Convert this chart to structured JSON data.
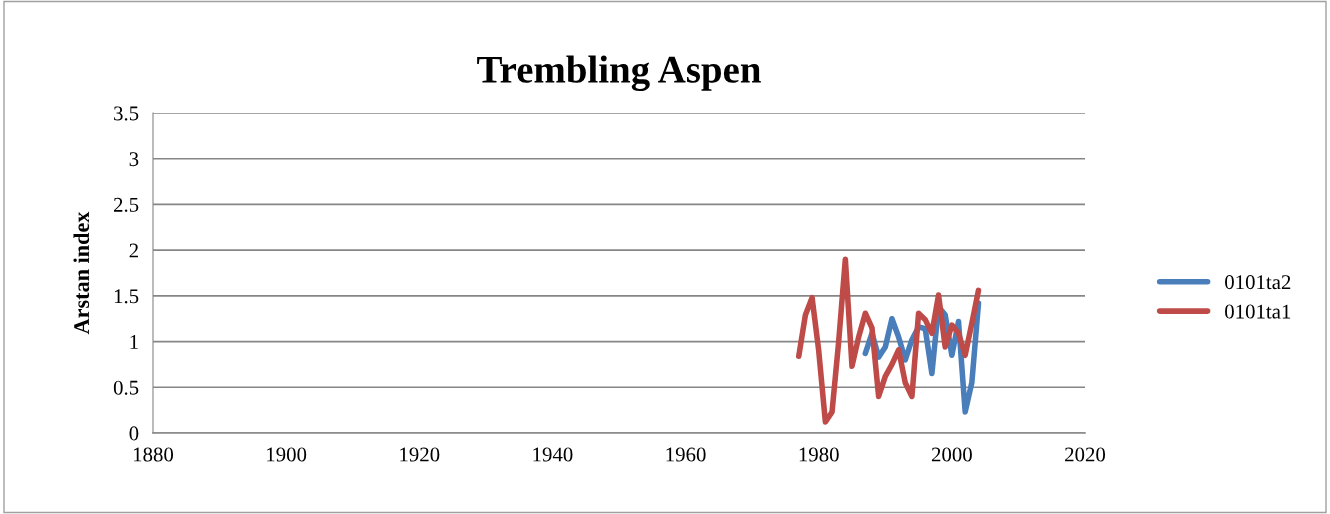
{
  "chart_data": {
    "type": "line",
    "title": "Trembling Aspen",
    "ylabel": "Arstan index",
    "xlim": [
      1880,
      2020
    ],
    "xticks": [
      1880,
      1900,
      1920,
      1940,
      1960,
      1980,
      2000,
      2020
    ],
    "ylim": [
      0,
      3.5
    ],
    "yticks": [
      0,
      0.5,
      1,
      1.5,
      2,
      2.5,
      3,
      3.5
    ],
    "grid": "y",
    "legend": "right",
    "marker": "none",
    "line_style": "solid",
    "series": [
      {
        "name": "0101ta2",
        "color": "#4a7ebb",
        "x": [
          1987,
          1988,
          1989,
          1990,
          1991,
          1992,
          1993,
          1994,
          1995,
          1996,
          1997,
          1998,
          1999,
          2000,
          2001,
          2002,
          2003,
          2004
        ],
        "values": [
          0.87,
          1.09,
          0.83,
          0.94,
          1.25,
          1.05,
          0.8,
          1.02,
          1.16,
          1.14,
          0.65,
          1.38,
          1.29,
          0.85,
          1.22,
          0.23,
          0.55,
          1.42
        ]
      },
      {
        "name": "0101ta1",
        "color": "#be4b48",
        "x": [
          1977,
          1978,
          1979,
          1980,
          1981,
          1982,
          1983,
          1984,
          1985,
          1986,
          1987,
          1988,
          1989,
          1990,
          1991,
          1992,
          1993,
          1994,
          1995,
          1996,
          1997,
          1998,
          1999,
          2000,
          2001,
          2002,
          2003,
          2004
        ],
        "values": [
          0.84,
          1.29,
          1.48,
          0.9,
          0.12,
          0.23,
          1.0,
          1.9,
          0.73,
          1.05,
          1.31,
          1.15,
          0.4,
          0.62,
          0.75,
          0.91,
          0.55,
          0.4,
          1.31,
          1.24,
          1.09,
          1.51,
          0.94,
          1.18,
          1.09,
          0.85,
          1.2,
          1.56
        ]
      }
    ]
  }
}
